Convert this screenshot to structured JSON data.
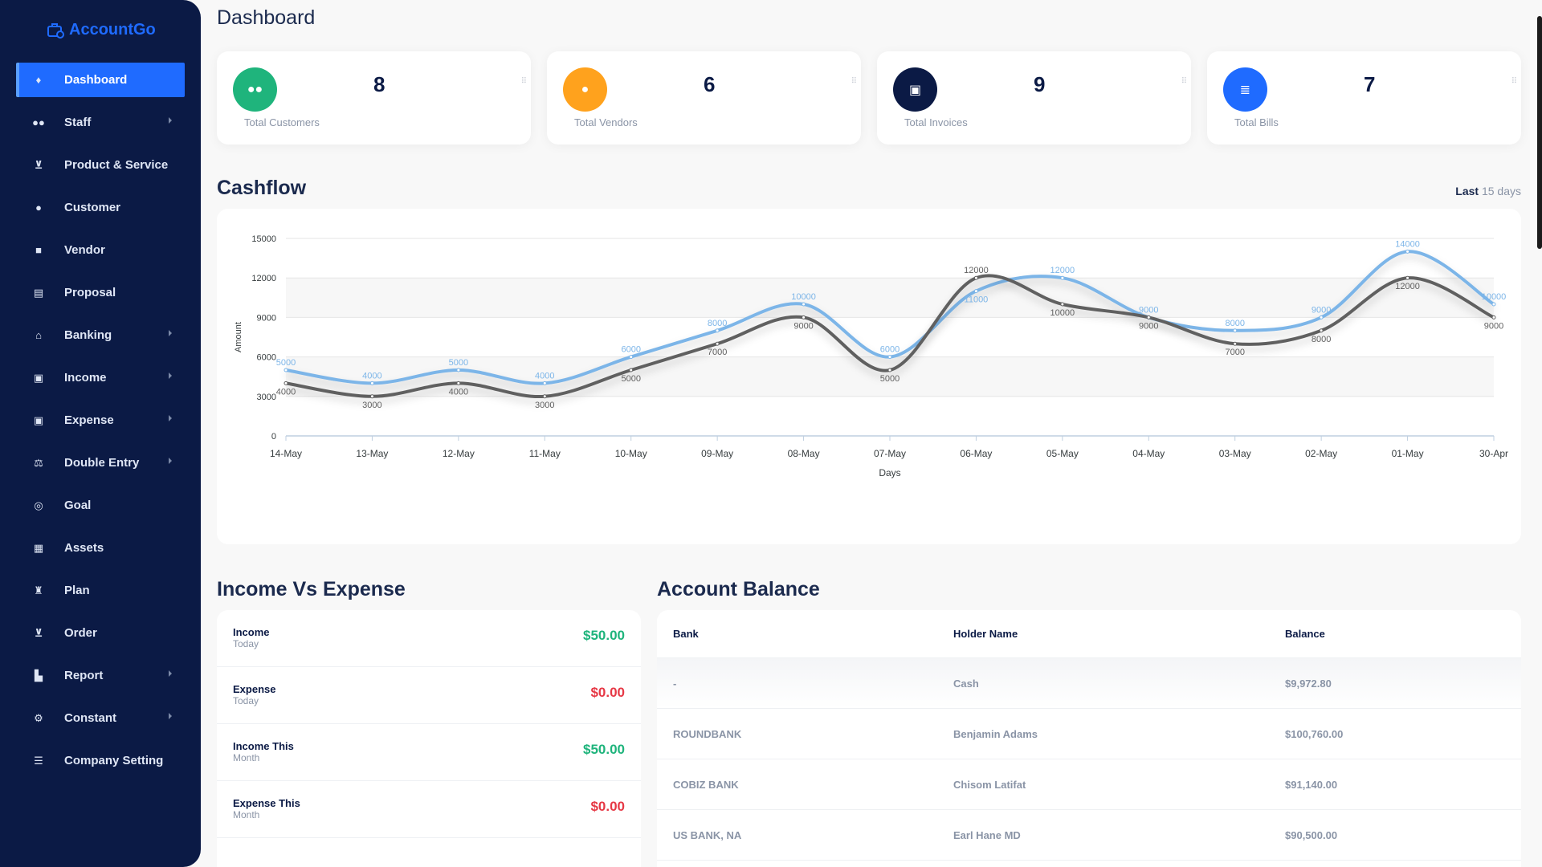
{
  "brand": {
    "name": "AccountGo"
  },
  "sidebar": {
    "items": [
      {
        "label": "Dashboard",
        "icon": "flame-icon",
        "active": true,
        "submenu": false
      },
      {
        "label": "Staff",
        "icon": "users-icon",
        "submenu": true
      },
      {
        "label": "Product & Service",
        "icon": "cart-icon",
        "submenu": false
      },
      {
        "label": "Customer",
        "icon": "user-tie-icon",
        "submenu": false
      },
      {
        "label": "Vendor",
        "icon": "note-icon",
        "submenu": false
      },
      {
        "label": "Proposal",
        "icon": "document-icon",
        "submenu": false
      },
      {
        "label": "Banking",
        "icon": "bank-icon",
        "submenu": true
      },
      {
        "label": "Income",
        "icon": "money-icon",
        "submenu": true
      },
      {
        "label": "Expense",
        "icon": "money-bill-icon",
        "submenu": true
      },
      {
        "label": "Double Entry",
        "icon": "balance-scale-icon",
        "submenu": true
      },
      {
        "label": "Goal",
        "icon": "target-icon",
        "submenu": false
      },
      {
        "label": "Assets",
        "icon": "calculator-icon",
        "submenu": false
      },
      {
        "label": "Plan",
        "icon": "trophy-icon",
        "submenu": false
      },
      {
        "label": "Order",
        "icon": "cart-plus-icon",
        "submenu": false
      },
      {
        "label": "Report",
        "icon": "chart-area-icon",
        "submenu": true
      },
      {
        "label": "Constant",
        "icon": "cog-icon",
        "submenu": true
      },
      {
        "label": "Company Setting",
        "icon": "sliders-icon",
        "submenu": false
      }
    ]
  },
  "header": {
    "title": "Dashboard"
  },
  "stats": [
    {
      "value": "8",
      "label": "Total Customers",
      "color": "#1fb47c",
      "icon": "users-icon"
    },
    {
      "value": "6",
      "label": "Total Vendors",
      "color": "#ffa21d",
      "icon": "user-icon"
    },
    {
      "value": "9",
      "label": "Total Invoices",
      "color": "#0b1a45",
      "icon": "money-bill-icon"
    },
    {
      "value": "7",
      "label": "Total Bills",
      "color": "#1f6bff",
      "icon": "database-icon"
    }
  ],
  "cashflow": {
    "title": "Cashflow",
    "range_prefix": "Last",
    "range_value": "15 days"
  },
  "chart_data": {
    "type": "line",
    "x": [
      "14-May",
      "13-May",
      "12-May",
      "11-May",
      "10-May",
      "09-May",
      "08-May",
      "07-May",
      "06-May",
      "05-May",
      "04-May",
      "03-May",
      "02-May",
      "01-May",
      "30-Apr"
    ],
    "series": [
      {
        "values": [
          5000,
          4000,
          5000,
          4000,
          6000,
          8000,
          10000,
          6000,
          11000,
          12000,
          9000,
          8000,
          9000,
          14000,
          10000
        ],
        "color": "#7cb5e8"
      },
      {
        "values": [
          4000,
          3000,
          4000,
          3000,
          5000,
          7000,
          9000,
          5000,
          12000,
          10000,
          9000,
          7000,
          8000,
          12000,
          9000
        ],
        "color": "#616161"
      }
    ],
    "xlabel": "Days",
    "ylabel": "Amount",
    "ylim": [
      0,
      15000
    ],
    "yticks": [
      0,
      3000,
      6000,
      9000,
      12000,
      15000
    ],
    "grid": true,
    "curve": "smooth"
  },
  "income_expense": {
    "title": "Income Vs Expense",
    "rows": [
      {
        "label": "Income",
        "sub": "Today",
        "value": "$50.00",
        "color": "#1fb47c"
      },
      {
        "label": "Expense",
        "sub": "Today",
        "value": "$0.00",
        "color": "#e63946"
      },
      {
        "label": "Income This",
        "sub": "Month",
        "value": "$50.00",
        "color": "#1fb47c"
      },
      {
        "label": "Expense This",
        "sub": "Month",
        "value": "$0.00",
        "color": "#e63946"
      }
    ]
  },
  "account_balance": {
    "title": "Account Balance",
    "headers": [
      "Bank",
      "Holder Name",
      "Balance"
    ],
    "rows": [
      [
        "-",
        "Cash",
        "$9,972.80"
      ],
      [
        "ROUNDBANK",
        "Benjamin Adams",
        "$100,760.00"
      ],
      [
        "COBIZ BANK",
        "Chisom Latifat",
        "$91,140.00"
      ],
      [
        "US BANK, NA",
        "Earl Hane MD",
        "$90,500.00"
      ]
    ]
  }
}
